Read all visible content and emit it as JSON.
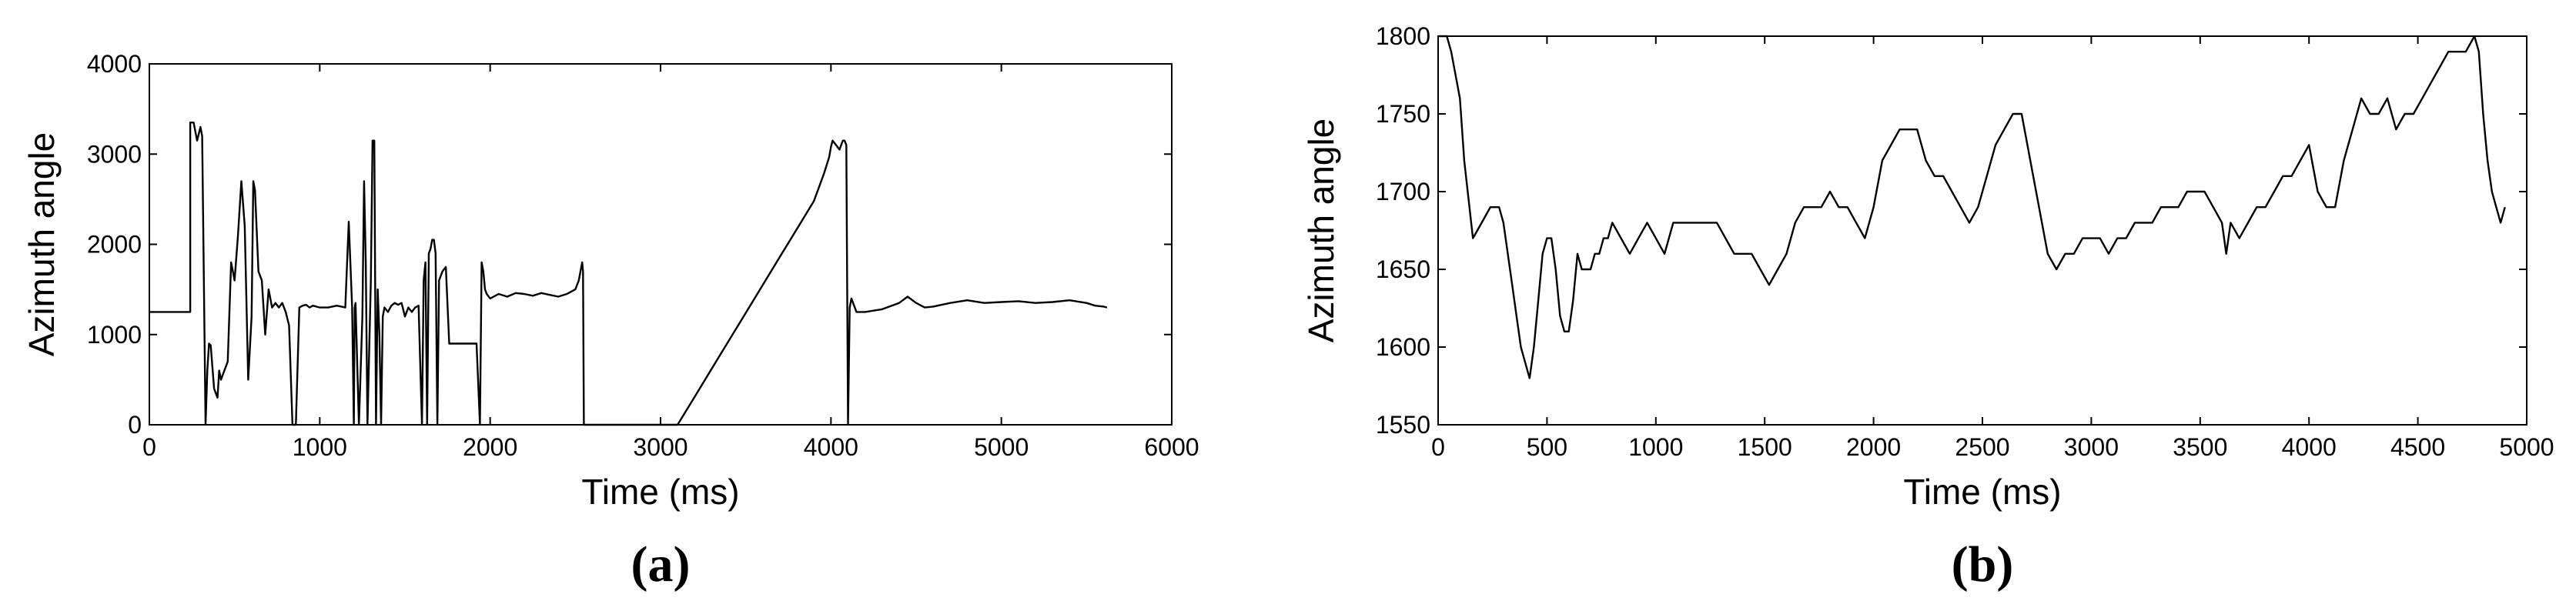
{
  "chart_data": [
    {
      "type": "line",
      "panel_label": "(a)",
      "xlabel": "Time (ms)",
      "ylabel": "Azimuth angle",
      "xlim": [
        0,
        6000
      ],
      "ylim": [
        0,
        4000
      ],
      "xticks": [
        "0",
        "1000",
        "2000",
        "3000",
        "4000",
        "5000",
        "6000"
      ],
      "yticks": [
        "0",
        "1000",
        "2000",
        "3000",
        "4000"
      ],
      "grid": false,
      "series": [
        {
          "x": [
            0,
            240,
            240,
            260,
            280,
            300,
            310,
            330,
            340,
            350,
            360,
            380,
            400,
            410,
            420,
            440,
            460,
            480,
            500,
            520,
            540,
            560,
            580,
            600,
            610,
            620,
            640,
            660,
            680,
            700,
            720,
            740,
            760,
            780,
            800,
            820,
            840,
            860,
            880,
            900,
            920,
            940,
            960,
            1000,
            1050,
            1100,
            1150,
            1170,
            1190,
            1200,
            1205,
            1210,
            1230,
            1250,
            1260,
            1270,
            1280,
            1300,
            1310,
            1320,
            1330,
            1340,
            1350,
            1360,
            1370,
            1380,
            1400,
            1420,
            1440,
            1460,
            1480,
            1500,
            1520,
            1540,
            1560,
            1580,
            1600,
            1610,
            1620,
            1630,
            1640,
            1650,
            1660,
            1670,
            1680,
            1690,
            1700,
            1710,
            1720,
            1740,
            1760,
            1780,
            1800,
            1820,
            1840,
            1860,
            1880,
            1900,
            1920,
            1940,
            1950,
            1960,
            1970,
            1980,
            2000,
            2050,
            2100,
            2150,
            2200,
            2250,
            2300,
            2350,
            2400,
            2450,
            2500,
            2520,
            2540,
            2545,
            2550,
            2600,
            2700,
            2800,
            2900,
            3000,
            3100,
            3200,
            3300,
            3400,
            3500,
            3600,
            3700,
            3800,
            3900,
            3960,
            3990,
            4000,
            4010,
            4030,
            4050,
            4070,
            4080,
            4090,
            4100,
            4110,
            4120,
            4130,
            4140,
            4150,
            4200,
            4300,
            4400,
            4450,
            4500,
            4550,
            4600,
            4700,
            4800,
            4900,
            5000,
            5100,
            5200,
            5300,
            5400,
            5500,
            5550,
            5600,
            5620
          ],
          "y": [
            1250,
            1250,
            3350,
            3350,
            3150,
            3300,
            3200,
            0,
            600,
            900,
            880,
            400,
            300,
            600,
            500,
            600,
            700,
            1800,
            1600,
            2100,
            2700,
            2200,
            500,
            1200,
            2700,
            2600,
            1700,
            1600,
            1000,
            1500,
            1300,
            1350,
            1300,
            1350,
            1250,
            1100,
            0,
            0,
            1300,
            1320,
            1330,
            1300,
            1320,
            1300,
            1300,
            1320,
            1300,
            2250,
            1300,
            0,
            1300,
            1350,
            0,
            1200,
            2700,
            1800,
            0,
            1600,
            3150,
            3150,
            0,
            1500,
            1000,
            0,
            1200,
            1300,
            1250,
            1320,
            1350,
            1330,
            1350,
            1200,
            1300,
            1250,
            1300,
            1320,
            0,
            1600,
            1800,
            0,
            1900,
            1950,
            2050,
            2050,
            1900,
            0,
            1600,
            1650,
            1700,
            1750,
            900,
            900,
            900,
            900,
            900,
            900,
            900,
            900,
            900,
            0,
            1800,
            1700,
            1500,
            1450,
            1400,
            1450,
            1420,
            1460,
            1450,
            1430,
            1460,
            1440,
            1420,
            1450,
            1500,
            1600,
            1800,
            1700,
            0,
            0,
            0,
            0,
            0,
            0,
            0,
            310,
            620,
            930,
            1240,
            1550,
            1860,
            2170,
            2480,
            2790,
            2970,
            3080,
            3150,
            3100,
            3050,
            3150,
            3150,
            3100,
            0,
            1300,
            1400,
            1350,
            1300,
            1250,
            1250,
            1280,
            1350,
            1420,
            1350,
            1300,
            1310,
            1350,
            1380,
            1350,
            1360,
            1370,
            1350,
            1360,
            1380,
            1350,
            1320,
            1310,
            1300
          ]
        }
      ]
    },
    {
      "type": "line",
      "panel_label": "(b)",
      "xlabel": "Time (ms)",
      "ylabel": "Azimuth angle",
      "xlim": [
        0,
        5000
      ],
      "ylim": [
        1550,
        1800
      ],
      "xticks": [
        "0",
        "500",
        "1000",
        "1500",
        "2000",
        "2500",
        "3000",
        "3500",
        "4000",
        "4500",
        "5000"
      ],
      "yticks": [
        "1550",
        "1600",
        "1650",
        "1700",
        "1750",
        "1800"
      ],
      "grid": false,
      "series": [
        {
          "x": [
            0,
            40,
            60,
            100,
            120,
            160,
            200,
            240,
            280,
            300,
            320,
            340,
            360,
            380,
            400,
            420,
            440,
            460,
            480,
            500,
            520,
            540,
            560,
            580,
            600,
            620,
            640,
            660,
            680,
            700,
            720,
            740,
            760,
            780,
            800,
            840,
            880,
            920,
            960,
            1000,
            1040,
            1080,
            1120,
            1160,
            1200,
            1240,
            1280,
            1320,
            1360,
            1400,
            1440,
            1480,
            1520,
            1560,
            1600,
            1640,
            1680,
            1720,
            1760,
            1800,
            1840,
            1880,
            1920,
            1960,
            2000,
            2040,
            2080,
            2120,
            2160,
            2200,
            2240,
            2280,
            2320,
            2360,
            2400,
            2440,
            2480,
            2520,
            2560,
            2600,
            2640,
            2680,
            2720,
            2760,
            2800,
            2840,
            2880,
            2920,
            2960,
            3000,
            3040,
            3080,
            3120,
            3160,
            3200,
            3240,
            3280,
            3320,
            3360,
            3400,
            3440,
            3480,
            3520,
            3560,
            3600,
            3620,
            3640,
            3680,
            3720,
            3760,
            3800,
            3840,
            3880,
            3920,
            3960,
            4000,
            4040,
            4080,
            4120,
            4160,
            4200,
            4240,
            4280,
            4320,
            4360,
            4400,
            4440,
            4480,
            4520,
            4560,
            4600,
            4640,
            4680,
            4720,
            4760,
            4780,
            4800,
            4820,
            4840,
            4860,
            4880,
            4900
          ],
          "y": [
            1800,
            1800,
            1790,
            1760,
            1720,
            1670,
            1680,
            1690,
            1690,
            1680,
            1660,
            1640,
            1620,
            1600,
            1590,
            1580,
            1600,
            1630,
            1660,
            1670,
            1670,
            1650,
            1620,
            1610,
            1610,
            1630,
            1660,
            1650,
            1650,
            1650,
            1660,
            1660,
            1670,
            1670,
            1680,
            1670,
            1660,
            1670,
            1680,
            1670,
            1660,
            1680,
            1680,
            1680,
            1680,
            1680,
            1680,
            1670,
            1660,
            1660,
            1660,
            1650,
            1640,
            1650,
            1660,
            1680,
            1690,
            1690,
            1690,
            1700,
            1690,
            1690,
            1680,
            1670,
            1690,
            1720,
            1730,
            1740,
            1740,
            1740,
            1720,
            1710,
            1710,
            1700,
            1690,
            1680,
            1690,
            1710,
            1730,
            1740,
            1750,
            1750,
            1720,
            1690,
            1660,
            1650,
            1660,
            1660,
            1670,
            1670,
            1670,
            1660,
            1670,
            1670,
            1680,
            1680,
            1680,
            1690,
            1690,
            1690,
            1700,
            1700,
            1700,
            1690,
            1680,
            1660,
            1680,
            1670,
            1680,
            1690,
            1690,
            1700,
            1710,
            1710,
            1720,
            1730,
            1700,
            1690,
            1690,
            1720,
            1740,
            1760,
            1750,
            1750,
            1760,
            1740,
            1750,
            1750,
            1760,
            1770,
            1780,
            1790,
            1790,
            1790,
            1800,
            1790,
            1750,
            1720,
            1700,
            1690,
            1680,
            1690
          ]
        }
      ]
    }
  ]
}
